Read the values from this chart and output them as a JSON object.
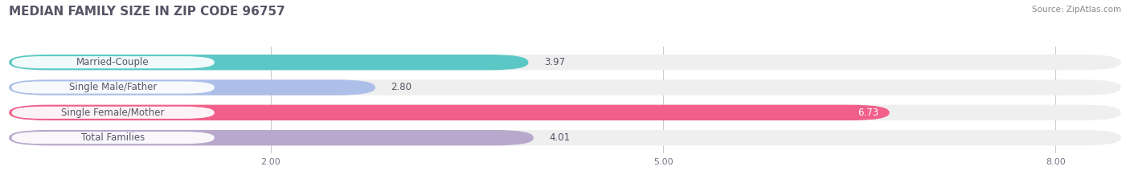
{
  "title": "MEDIAN FAMILY SIZE IN ZIP CODE 96757",
  "source": "Source: ZipAtlas.com",
  "categories": [
    "Married-Couple",
    "Single Male/Father",
    "Single Female/Mother",
    "Total Families"
  ],
  "values": [
    3.97,
    2.8,
    6.73,
    4.01
  ],
  "bar_colors": [
    "#5bc8c5",
    "#adbfe8",
    "#f0608a",
    "#b8a8cc"
  ],
  "bar_bg_color": "#efefef",
  "xlim": [
    0,
    8.5
  ],
  "xmin": 0,
  "xmax": 8.5,
  "xticks": [
    2.0,
    5.0,
    8.0
  ],
  "title_color": "#555566",
  "title_fontsize": 11,
  "label_fontsize": 8.5,
  "value_fontsize": 8.5,
  "source_fontsize": 7.5,
  "source_color": "#888888",
  "background_color": "#ffffff",
  "label_box_color": "#ffffff",
  "label_text_color": "#555566",
  "value_text_color_inside": "#ffffff",
  "value_text_color_outside": "#555566"
}
